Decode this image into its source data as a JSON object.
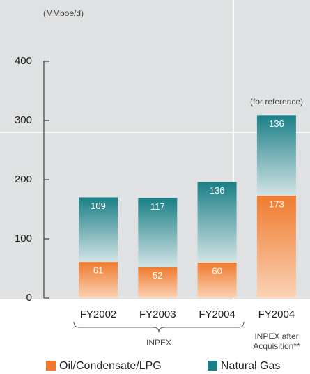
{
  "chart_data": {
    "type": "bar",
    "stacked": true,
    "y_label": "(MMboe/d)",
    "categories": [
      "FY2002",
      "FY2003",
      "FY2004",
      "FY2004"
    ],
    "series": [
      {
        "name": "Oil/Condensate/LPG",
        "color": "#ef7a2e",
        "values": [
          61,
          52,
          60,
          173
        ]
      },
      {
        "name": "Natural Gas",
        "color": "#1b7f86",
        "values": [
          109,
          117,
          136,
          136
        ]
      }
    ],
    "ylim": [
      0,
      400
    ],
    "yticks": [
      0,
      100,
      200,
      300,
      400
    ],
    "annotations": {
      "group": "INPEX",
      "after": [
        "INPEX after",
        "Acquisition**"
      ],
      "reference": "(for reference)"
    }
  }
}
